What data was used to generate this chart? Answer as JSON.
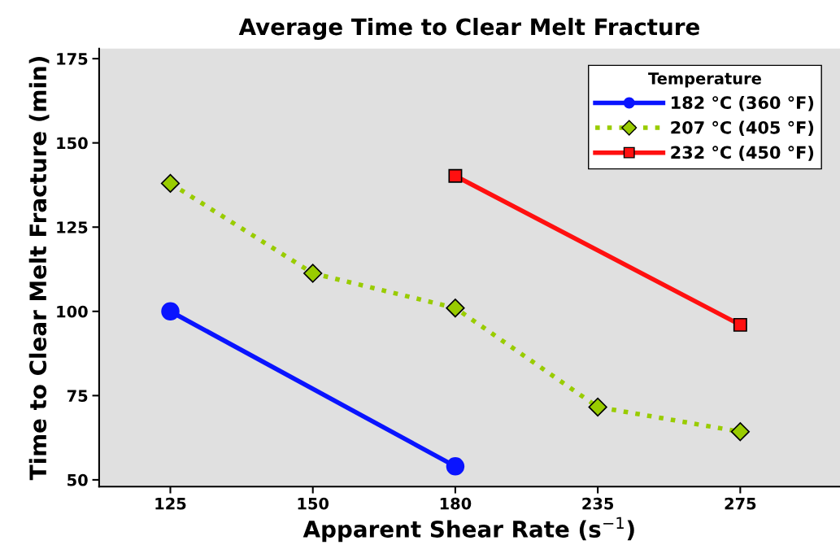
{
  "chart_data": {
    "type": "line",
    "title": "Average Time to Clear Melt Fracture",
    "xlabel": "Apparent Shear Rate (s$^{−1}$)",
    "ylabel": "Time to Clear Melt Fracture (min)",
    "legend_title": "Temperature",
    "categories": [
      "125",
      "150",
      "180",
      "235",
      "275"
    ],
    "series": [
      {
        "name": "182 °C (360 °F)",
        "color": "#0a14ff",
        "values": [
          100,
          null,
          54,
          null,
          null
        ],
        "marker": "circle",
        "line_style": "solid"
      },
      {
        "name": "207 °C (405 °F)",
        "color": "#99cc00",
        "values": [
          138,
          111.3,
          101,
          71.6,
          64.3
        ],
        "marker": "diamond",
        "line_style": "dotted"
      },
      {
        "name": "232 °C (450 °F)",
        "color": "#ff1010",
        "values": [
          null,
          null,
          140.2,
          null,
          96
        ],
        "marker": "square",
        "line_style": "solid"
      }
    ],
    "ylim": [
      48,
      178
    ],
    "yticks": [
      50,
      75,
      100,
      125,
      150,
      175
    ],
    "grid": false,
    "legend": "top right"
  }
}
